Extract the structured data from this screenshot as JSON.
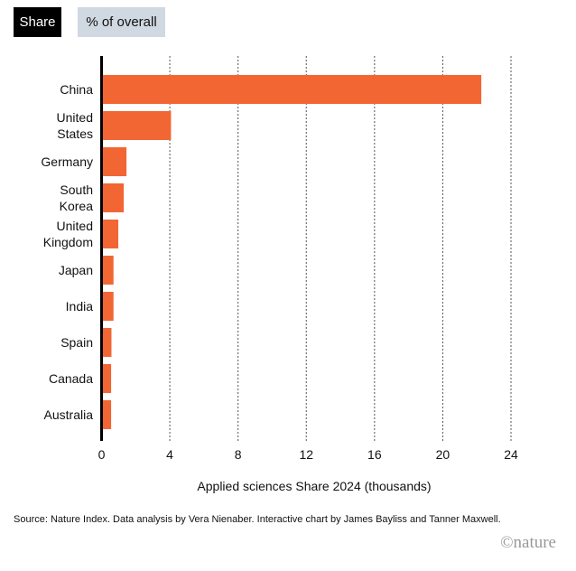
{
  "toggle": {
    "share_label": "Share",
    "percent_label": "% of overall",
    "active": "Share"
  },
  "chart_data": {
    "type": "bar",
    "orientation": "horizontal",
    "categories": [
      "China",
      "United States",
      "Germany",
      "South Korea",
      "United Kingdom",
      "Japan",
      "India",
      "Spain",
      "Canada",
      "Australia"
    ],
    "category_lines": [
      [
        "China"
      ],
      [
        "United",
        "States"
      ],
      [
        "Germany"
      ],
      [
        "South",
        "Korea"
      ],
      [
        "United",
        "Kingdom"
      ],
      [
        "Japan"
      ],
      [
        "India"
      ],
      [
        "Spain"
      ],
      [
        "Canada"
      ],
      [
        "Australia"
      ]
    ],
    "values": [
      22.26,
      4.07,
      1.46,
      1.3,
      0.98,
      0.7,
      0.7,
      0.58,
      0.56,
      0.56
    ],
    "xlabel": "Applied sciences Share 2024 (thousands)",
    "xlim": [
      0,
      24
    ],
    "xticks": [
      0,
      4,
      8,
      12,
      16,
      20,
      24
    ],
    "grid": "vertical dotted",
    "bar_color": "#f26633"
  },
  "footer": {
    "source": "Source: Nature Index. Data analysis by Vera Nienaber. Interactive chart by James Bayliss and Tanner Maxwell.",
    "logo": "©nature"
  }
}
